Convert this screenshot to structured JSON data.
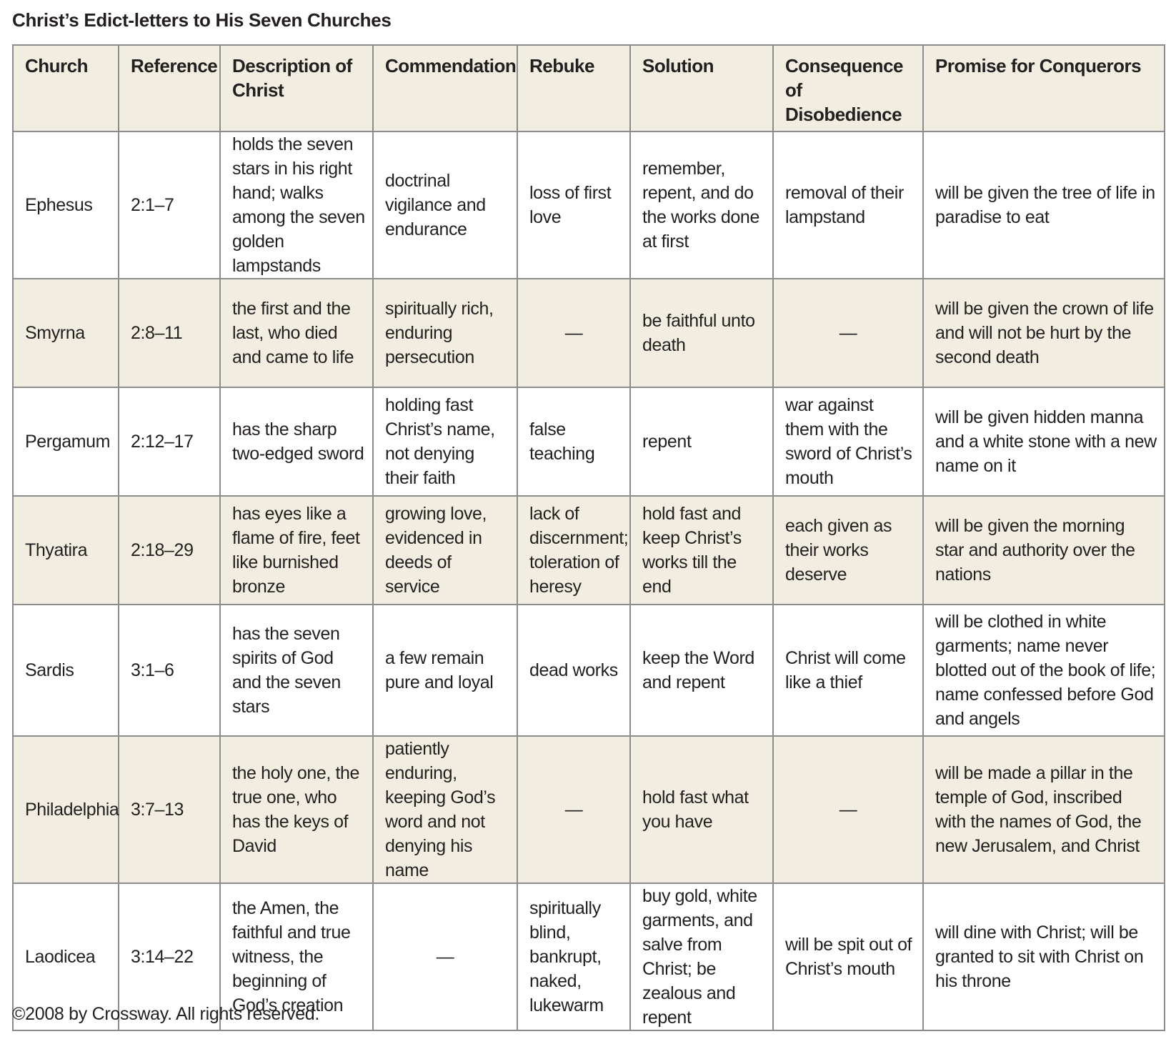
{
  "title": "Christ’s Edict-letters to His Seven Churches",
  "footer": "©2008 by Crossway. All rights reserved.",
  "colors": {
    "header_fill": "#f1ede0",
    "shaded_row_fill": "#f1ede0",
    "border": "#8c8c8c",
    "text": "#231f20"
  },
  "table": {
    "headers": [
      "Church",
      "Reference",
      "Description of Christ",
      "Commendation",
      "Rebuke",
      "Solution",
      "Consequence of Disobedience",
      "Promise for Conquerors"
    ],
    "rows": [
      {
        "shaded": false,
        "cells": [
          "Ephesus",
          "2:1–7",
          "holds the seven stars in his right hand; walks among the seven golden lampstands",
          "doctrinal vigilance and endurance",
          "loss of first love",
          "remember, repent, and do the works done at first",
          "removal of their lampstand",
          "will be given the tree of life in paradise to eat"
        ]
      },
      {
        "shaded": true,
        "cells": [
          "Smyrna",
          "2:8–11",
          "the first and the last, who died and came to life",
          "spiritually rich, enduring persecution",
          "—",
          "be faithful unto death",
          "—",
          "will be given the crown of life and will not be hurt by the second death"
        ]
      },
      {
        "shaded": false,
        "cells": [
          "Pergamum",
          "2:12–17",
          "has the sharp two-edged sword",
          "holding fast Christ’s name, not denying their faith",
          "false teaching",
          "repent",
          "war against them with the sword of Christ’s mouth",
          "will be given hidden manna and a white stone with a new name on it"
        ]
      },
      {
        "shaded": true,
        "cells": [
          "Thyatira",
          "2:18–29",
          "has eyes like a flame of fire, feet like burnished bronze",
          "growing love, evidenced in deeds of service",
          "lack of discernment; toleration of heresy",
          "hold fast and keep Christ’s works till the end",
          "each given as their works deserve",
          "will be given the morning star and authority over the nations"
        ]
      },
      {
        "shaded": false,
        "cells": [
          "Sardis",
          "3:1–6",
          "has the seven spirits of God and the seven stars",
          "a few remain pure and loyal",
          "dead works",
          "keep the Word and repent",
          "Christ will come like a thief",
          "will be clothed in white garments; name never blotted out of the book of life; name confessed before God and angels"
        ]
      },
      {
        "shaded": true,
        "cells": [
          "Philadelphia",
          "3:7–13",
          "the holy one, the true one, who has the keys of David",
          "patiently enduring, keeping God’s word and not denying his name",
          "—",
          "hold fast what you have",
          "—",
          "will be made a pillar in the temple of God, inscribed with the names of God, the new Jerusalem, and Christ"
        ]
      },
      {
        "shaded": false,
        "cells": [
          "Laodicea",
          "3:14–22",
          "the Amen, the faithful and true witness, the beginning of God’s creation",
          "—",
          "spiritually blind, bankrupt, naked, lukewarm",
          "buy gold, white garments, and salve from Christ; be zealous and repent",
          "will be spit out of Christ’s mouth",
          "will dine with Christ; will be granted to sit with Christ on his throne"
        ]
      }
    ]
  }
}
